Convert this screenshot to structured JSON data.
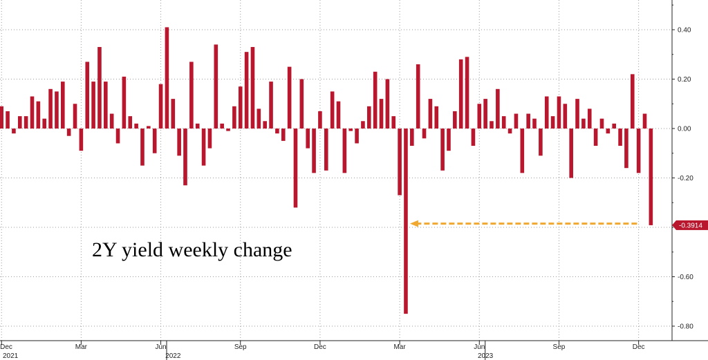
{
  "chart_data": {
    "type": "bar",
    "title": "2Y yield weekly change",
    "xlabel": "",
    "ylabel": "",
    "ylim": [
      -0.85,
      0.52
    ],
    "y_ticks": [
      0.4,
      0.2,
      0.0,
      -0.2,
      -0.6,
      -0.8
    ],
    "y_tick_labels": [
      "0.40",
      "0.20",
      "0.00",
      "-0.20",
      "-0.60",
      "-0.80"
    ],
    "x_ticks": [
      {
        "label": "Dec",
        "week": 1
      },
      {
        "label": "Mar",
        "week": 14
      },
      {
        "label": "Jun",
        "week": 27
      },
      {
        "label": "Sep",
        "week": 40
      },
      {
        "label": "Dec",
        "week": 53
      },
      {
        "label": "Mar",
        "week": 66
      },
      {
        "label": "Jun",
        "week": 79
      },
      {
        "label": "Sep",
        "week": 92
      },
      {
        "label": "Dec",
        "week": 105
      }
    ],
    "years": [
      {
        "label": "2021",
        "week": 1
      },
      {
        "label": "2022",
        "week": 29
      },
      {
        "label": "2023",
        "week": 80
      }
    ],
    "values": [
      0.09,
      0.07,
      -0.02,
      0.05,
      0.05,
      0.13,
      0.11,
      0.04,
      0.16,
      0.15,
      0.19,
      -0.03,
      0.1,
      -0.09,
      0.27,
      0.19,
      0.33,
      0.19,
      0.06,
      -0.06,
      0.21,
      0.05,
      0.02,
      -0.15,
      0.01,
      -0.1,
      0.18,
      0.41,
      0.12,
      -0.11,
      -0.23,
      0.27,
      0.02,
      -0.15,
      -0.08,
      0.34,
      0.02,
      -0.01,
      0.09,
      0.17,
      0.31,
      0.33,
      0.08,
      0.03,
      0.19,
      -0.02,
      -0.05,
      0.25,
      -0.32,
      0.2,
      -0.08,
      -0.18,
      0.07,
      -0.17,
      0.15,
      0.11,
      -0.18,
      -0.01,
      -0.06,
      0.03,
      0.09,
      0.23,
      0.12,
      0.2,
      0.05,
      -0.27,
      -0.75,
      -0.07,
      0.26,
      -0.04,
      0.12,
      0.09,
      -0.17,
      -0.09,
      0.07,
      0.28,
      0.29,
      -0.07,
      0.1,
      0.12,
      0.03,
      0.16,
      0.05,
      -0.02,
      0.06,
      -0.18,
      0.06,
      0.04,
      -0.11,
      0.13,
      0.05,
      0.13,
      0.1,
      -0.2,
      0.12,
      0.04,
      0.08,
      -0.07,
      0.04,
      -0.02,
      0.02,
      -0.07,
      -0.16,
      0.22,
      -0.18,
      0.06,
      -0.3914
    ],
    "last_value_label": "-0.3914",
    "annotation_arrow": {
      "from_week": 107,
      "to_week": 67,
      "y": -0.385
    },
    "grid": true,
    "colors": {
      "bar": "#b8172e",
      "arrow": "#f0a830",
      "grid": "#999999",
      "axis": "#222222",
      "label_box": "#b8172e"
    }
  }
}
